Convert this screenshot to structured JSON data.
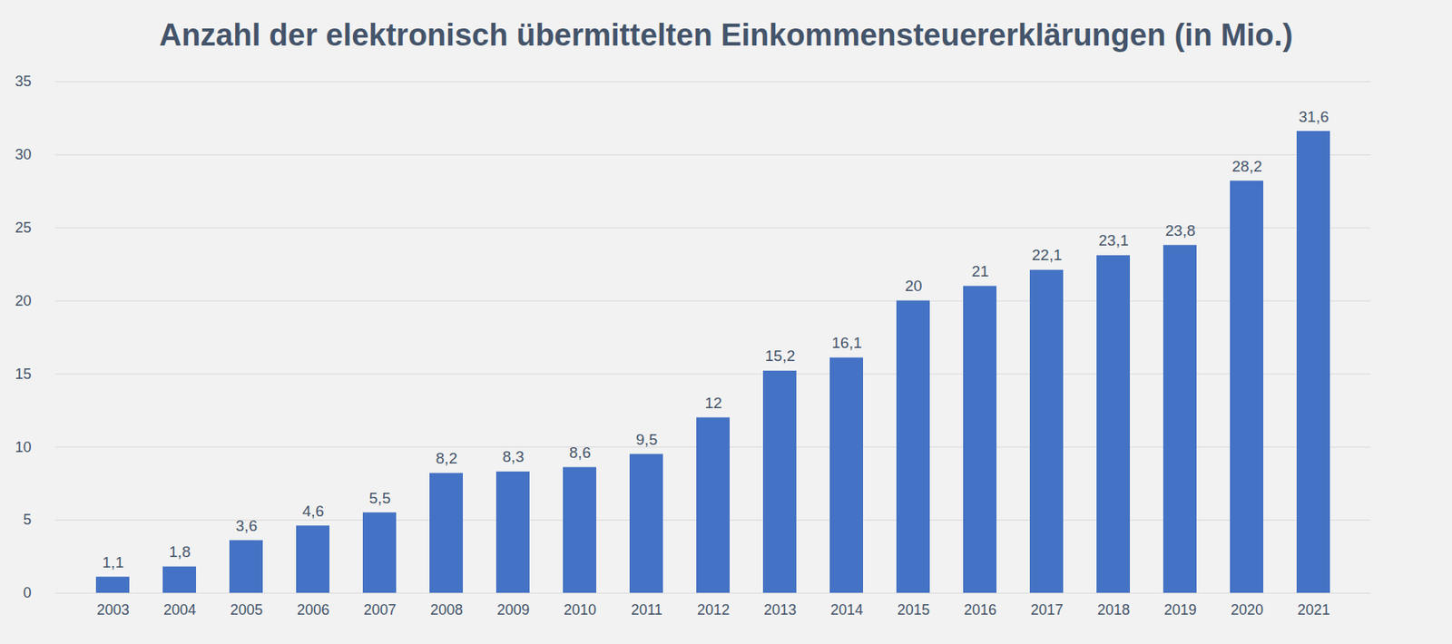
{
  "chart_data": {
    "type": "bar",
    "title": "Anzahl der elektronisch übermittelten Einkommensteuererklärungen (in Mio.)",
    "categories": [
      "2003",
      "2004",
      "2005",
      "2006",
      "2007",
      "2008",
      "2009",
      "2010",
      "2011",
      "2012",
      "2013",
      "2014",
      "2015",
      "2016",
      "2017",
      "2018",
      "2019",
      "2020",
      "2021"
    ],
    "values": [
      1.1,
      1.8,
      3.6,
      4.6,
      5.5,
      8.2,
      8.3,
      8.6,
      9.5,
      12,
      15.2,
      16.1,
      20,
      21,
      22.1,
      23.1,
      23.8,
      28.2,
      31.6
    ],
    "value_labels": [
      "1,1",
      "1,8",
      "3,6",
      "4,6",
      "5,5",
      "8,2",
      "8,3",
      "8,6",
      "9,5",
      "12",
      "15,2",
      "16,1",
      "20",
      "21",
      "22,1",
      "23,1",
      "23,8",
      "28,2",
      "31,6"
    ],
    "color": "#4472c4",
    "ylim": [
      0,
      35
    ],
    "yticks": [
      0,
      5,
      10,
      15,
      20,
      25,
      30,
      35
    ],
    "grid": true,
    "data_labels": true
  }
}
